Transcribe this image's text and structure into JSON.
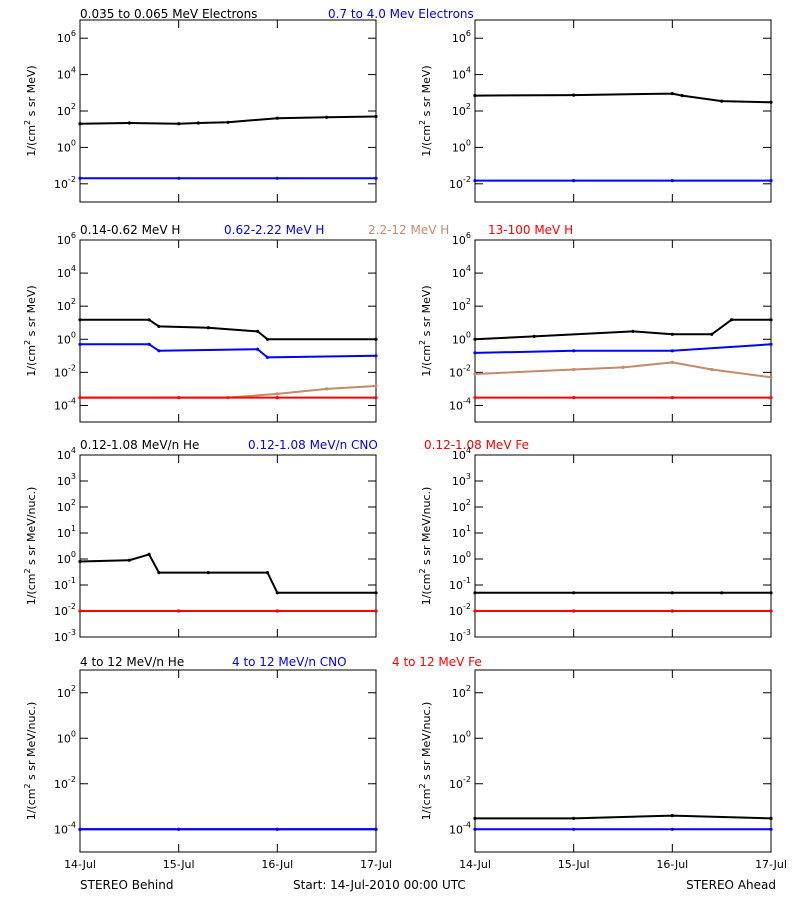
{
  "colors": {
    "black": "#000000",
    "blue": "#0000ff",
    "tan": "#c48a6a",
    "red": "#ff0000"
  },
  "ylabel_units": {
    "flux": [
      "1/(cm",
      "2",
      " s sr MeV)"
    ],
    "nuc": [
      "1/(cm",
      "2",
      " s sr MeV/nuc.)"
    ]
  },
  "xaxis": {
    "ticks": [
      "14-Jul",
      "15-Jul",
      "16-Jul",
      "17-Jul"
    ],
    "range_days": [
      0,
      3
    ]
  },
  "footer": {
    "left": "STEREO Behind",
    "center": "Start: 14-Jul-2010 00:00 UTC",
    "right": "STEREO Ahead"
  },
  "chart_data": [
    {
      "type": "scatter",
      "id": "elec-behind",
      "ylog": true,
      "yrange_exp": [
        -3,
        7
      ],
      "ytick_exps": [
        -2,
        0,
        2,
        4,
        6
      ],
      "ylabel_key": "flux",
      "series": [
        {
          "name": "0.035 to 0.065 MeV Electrons",
          "color": "#000000",
          "x": [
            0,
            0.5,
            1,
            1.2,
            1.5,
            2,
            2.5,
            3
          ],
          "y": [
            20,
            22,
            20,
            22,
            24,
            40,
            45,
            50
          ]
        },
        {
          "name": "0.7 to 4.0 Mev Electrons",
          "color": "#0000ff",
          "x": [
            0,
            1,
            2,
            3
          ],
          "y": [
            0.02,
            0.02,
            0.02,
            0.02
          ]
        }
      ]
    },
    {
      "type": "scatter",
      "id": "elec-ahead",
      "ylog": true,
      "yrange_exp": [
        -3,
        7
      ],
      "ytick_exps": [
        -2,
        0,
        2,
        4,
        6
      ],
      "ylabel_key": "flux",
      "series": [
        {
          "name": "0.035 to 0.065 MeV Electrons",
          "color": "#000000",
          "x": [
            0,
            1,
            2,
            2.1,
            2.5,
            3
          ],
          "y": [
            700,
            750,
            900,
            700,
            350,
            300
          ]
        },
        {
          "name": "0.7 to 4.0 Mev Electrons",
          "color": "#0000ff",
          "x": [
            0,
            1,
            2,
            3
          ],
          "y": [
            0.015,
            0.015,
            0.015,
            0.015
          ]
        }
      ]
    },
    {
      "type": "scatter",
      "id": "h-behind",
      "ylog": true,
      "yrange_exp": [
        -5,
        6
      ],
      "ytick_exps": [
        -4,
        -2,
        0,
        2,
        4,
        6
      ],
      "ylabel_key": "flux",
      "series": [
        {
          "name": "0.14-0.62 MeV H",
          "color": "#000000",
          "x": [
            0,
            0.7,
            0.8,
            1.3,
            1.8,
            1.9,
            3
          ],
          "y": [
            15,
            15,
            6,
            5,
            3,
            1,
            1
          ]
        },
        {
          "name": "0.62-2.22 MeV H",
          "color": "#0000ff",
          "x": [
            0,
            0.7,
            0.8,
            1.8,
            1.9,
            3
          ],
          "y": [
            0.5,
            0.5,
            0.2,
            0.25,
            0.08,
            0.1
          ]
        },
        {
          "name": "2.2-12 MeV H",
          "color": "#c48a6a",
          "x": [
            0,
            1.5,
            2,
            2.5,
            3
          ],
          "y": [
            0.0003,
            0.0003,
            0.0005,
            0.001,
            0.0015
          ]
        },
        {
          "name": "13-100 MeV H",
          "color": "#ff0000",
          "x": [
            0,
            1,
            2,
            3
          ],
          "y": [
            0.0003,
            0.0003,
            0.0003,
            0.0003
          ]
        }
      ]
    },
    {
      "type": "scatter",
      "id": "h-ahead",
      "ylog": true,
      "yrange_exp": [
        -5,
        6
      ],
      "ytick_exps": [
        -4,
        -2,
        0,
        2,
        4,
        6
      ],
      "ylabel_key": "flux",
      "series": [
        {
          "name": "0.14-0.62 MeV H",
          "color": "#000000",
          "x": [
            0,
            0.6,
            1.6,
            2,
            2.4,
            2.6,
            3
          ],
          "y": [
            1,
            1.5,
            3,
            2,
            2,
            15,
            15
          ]
        },
        {
          "name": "0.62-2.22 MeV H",
          "color": "#0000ff",
          "x": [
            0,
            1,
            2,
            3
          ],
          "y": [
            0.15,
            0.2,
            0.2,
            0.5
          ]
        },
        {
          "name": "2.2-12 MeV H",
          "color": "#c48a6a",
          "x": [
            0,
            1,
            1.5,
            2,
            2.4,
            3
          ],
          "y": [
            0.008,
            0.015,
            0.02,
            0.04,
            0.015,
            0.005
          ]
        },
        {
          "name": "13-100 MeV H",
          "color": "#ff0000",
          "x": [
            0,
            1,
            2,
            3
          ],
          "y": [
            0.0003,
            0.0003,
            0.0003,
            0.0003
          ]
        }
      ]
    },
    {
      "type": "scatter",
      "id": "he-behind",
      "ylog": true,
      "yrange_exp": [
        -3,
        4
      ],
      "ytick_exps": [
        -3,
        -2,
        -1,
        0,
        1,
        2,
        3,
        4
      ],
      "ylabel_key": "nuc",
      "series": [
        {
          "name": "0.12-1.08 MeV/n He",
          "color": "#000000",
          "x": [
            0,
            0.5,
            0.7,
            0.8,
            1.3,
            1.9,
            2,
            3
          ],
          "y": [
            0.8,
            0.9,
            1.5,
            0.3,
            0.3,
            0.3,
            0.05,
            0.05
          ]
        },
        {
          "name": "0.12-1.08 MeV/n CNO",
          "color": "#0000ff",
          "x": [
            0,
            1,
            2,
            3
          ],
          "y": [
            0.01,
            0.01,
            0.01,
            0.01
          ]
        },
        {
          "name": "0.12-1.08 MeV Fe",
          "color": "#ff0000",
          "x": [
            0,
            1,
            2,
            3
          ],
          "y": [
            0.01,
            0.01,
            0.01,
            0.01
          ]
        }
      ]
    },
    {
      "type": "scatter",
      "id": "he-ahead",
      "ylog": true,
      "yrange_exp": [
        -3,
        4
      ],
      "ytick_exps": [
        -3,
        -2,
        -1,
        0,
        1,
        2,
        3,
        4
      ],
      "ylabel_key": "nuc",
      "series": [
        {
          "name": "0.12-1.08 MeV/n He",
          "color": "#000000",
          "x": [
            0,
            1,
            2,
            2.5,
            3
          ],
          "y": [
            0.05,
            0.05,
            0.05,
            0.05,
            0.05
          ]
        },
        {
          "name": "0.12-1.08 MeV/n CNO",
          "color": "#0000ff",
          "x": [
            0,
            1,
            2,
            3
          ],
          "y": [
            0.01,
            0.01,
            0.01,
            0.01
          ]
        },
        {
          "name": "0.12-1.08 MeV Fe",
          "color": "#ff0000",
          "x": [
            0,
            1,
            2,
            3
          ],
          "y": [
            0.01,
            0.01,
            0.01,
            0.01
          ]
        }
      ]
    },
    {
      "type": "scatter",
      "id": "hi-behind",
      "ylog": true,
      "yrange_exp": [
        -5,
        3
      ],
      "ytick_exps": [
        -4,
        -2,
        0,
        2
      ],
      "ylabel_key": "nuc",
      "series": [
        {
          "name": "4 to 12 MeV/n He",
          "color": "#000000",
          "x": [
            0,
            1,
            2,
            3
          ],
          "y": [
            0.0001,
            0.0001,
            0.0001,
            0.0001
          ]
        },
        {
          "name": "4 to 12 MeV/n CNO",
          "color": "#0000ff",
          "x": [
            0,
            1,
            2,
            3
          ],
          "y": [
            0.0001,
            0.0001,
            0.0001,
            0.0001
          ]
        },
        {
          "name": "4 to 12 MeV Fe",
          "color": "#ff0000",
          "x": [],
          "y": []
        }
      ]
    },
    {
      "type": "scatter",
      "id": "hi-ahead",
      "ylog": true,
      "yrange_exp": [
        -5,
        3
      ],
      "ytick_exps": [
        -4,
        -2,
        0,
        2
      ],
      "ylabel_key": "nuc",
      "series": [
        {
          "name": "4 to 12 MeV/n He",
          "color": "#000000",
          "x": [
            0,
            1,
            2,
            3
          ],
          "y": [
            0.0003,
            0.0003,
            0.0004,
            0.0003
          ]
        },
        {
          "name": "4 to 12 MeV/n CNO",
          "color": "#0000ff",
          "x": [
            0,
            1,
            2,
            3
          ],
          "y": [
            0.0001,
            0.0001,
            0.0001,
            0.0001
          ]
        },
        {
          "name": "4 to 12 MeV Fe",
          "color": "#ff0000",
          "x": [],
          "y": []
        }
      ]
    }
  ]
}
